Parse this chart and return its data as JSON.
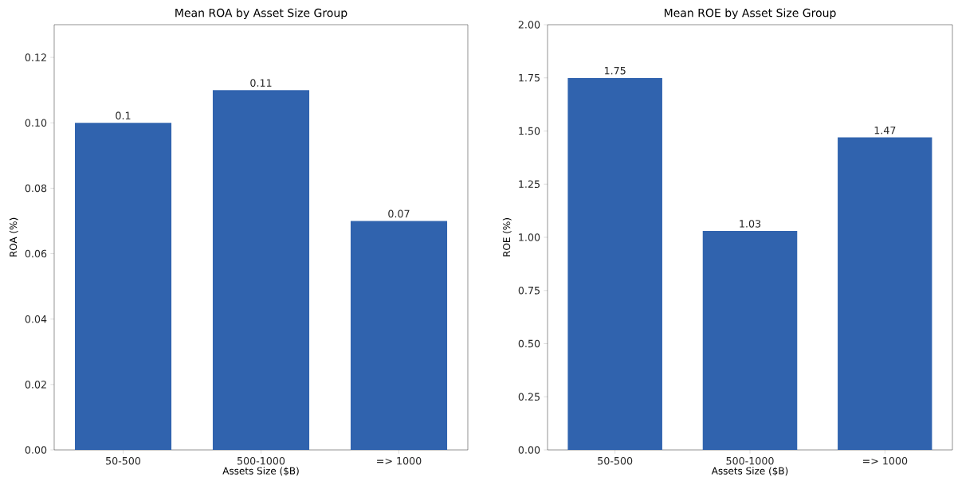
{
  "chart_data": [
    {
      "type": "bar",
      "title": "Mean ROA by Asset Size Group",
      "xlabel": "Assets Size ($B)",
      "ylabel": "ROA (%)",
      "categories": [
        "50-500",
        "500-1000",
        "=> 1000"
      ],
      "values": [
        0.1,
        0.11,
        0.07
      ],
      "color": "#3063ae",
      "data_labels": true,
      "ylim": [
        0,
        0.13
      ],
      "yticks": [
        {
          "value": 0,
          "label": "0.00"
        },
        {
          "value": 0.02,
          "label": "0.02"
        },
        {
          "value": 0.04,
          "label": "0.04"
        },
        {
          "value": 0.06,
          "label": "0.06"
        },
        {
          "value": 0.08,
          "label": "0.08"
        },
        {
          "value": 0.1,
          "label": "0.10"
        },
        {
          "value": 0.12,
          "label": "0.12"
        }
      ],
      "grid": false
    },
    {
      "type": "bar",
      "title": "Mean ROE by Asset Size Group",
      "xlabel": "Assets Size ($B)",
      "ylabel": "ROE (%)",
      "categories": [
        "50-500",
        "500-1000",
        "=> 1000"
      ],
      "values": [
        1.75,
        1.03,
        1.47
      ],
      "color": "#3063ae",
      "data_labels": true,
      "ylim": [
        0,
        2
      ],
      "yticks": [
        {
          "value": 0,
          "label": "0.00"
        },
        {
          "value": 0.25,
          "label": "0.25"
        },
        {
          "value": 0.5,
          "label": "0.50"
        },
        {
          "value": 0.75,
          "label": "0.75"
        },
        {
          "value": 1,
          "label": "1.00"
        },
        {
          "value": 1.25,
          "label": "1.25"
        },
        {
          "value": 1.5,
          "label": "1.50"
        },
        {
          "value": 1.75,
          "label": "1.75"
        },
        {
          "value": 2,
          "label": "2.00"
        }
      ],
      "grid": false
    }
  ]
}
